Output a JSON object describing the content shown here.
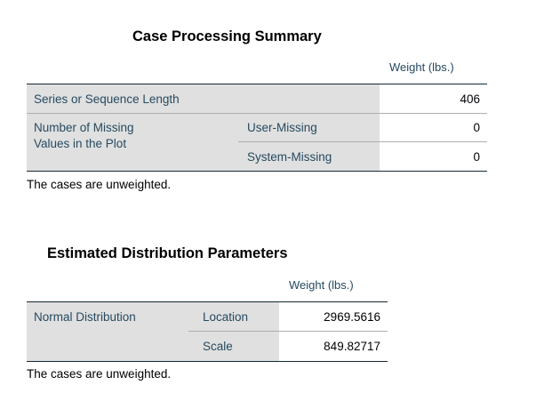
{
  "case_processing": {
    "title": "Case Processing Summary",
    "column_header": "Weight (lbs.)",
    "rows": [
      {
        "label": "Series or Sequence Length",
        "value": "406"
      },
      {
        "group_label_line1": "Number of Missing",
        "group_label_line2": "Values in the Plot",
        "sub_label": "User-Missing",
        "value": "0"
      },
      {
        "sub_label": "System-Missing",
        "value": "0"
      }
    ],
    "footnote": "The cases are unweighted."
  },
  "distribution_params": {
    "title": "Estimated Distribution Parameters",
    "column_header": "Weight (lbs.)",
    "rows": [
      {
        "group_label": "Normal Distribution",
        "sub_label": "Location",
        "value": "2969.5616"
      },
      {
        "sub_label": "Scale",
        "value": "849.82717"
      }
    ],
    "footnote": "The cases are unweighted."
  }
}
